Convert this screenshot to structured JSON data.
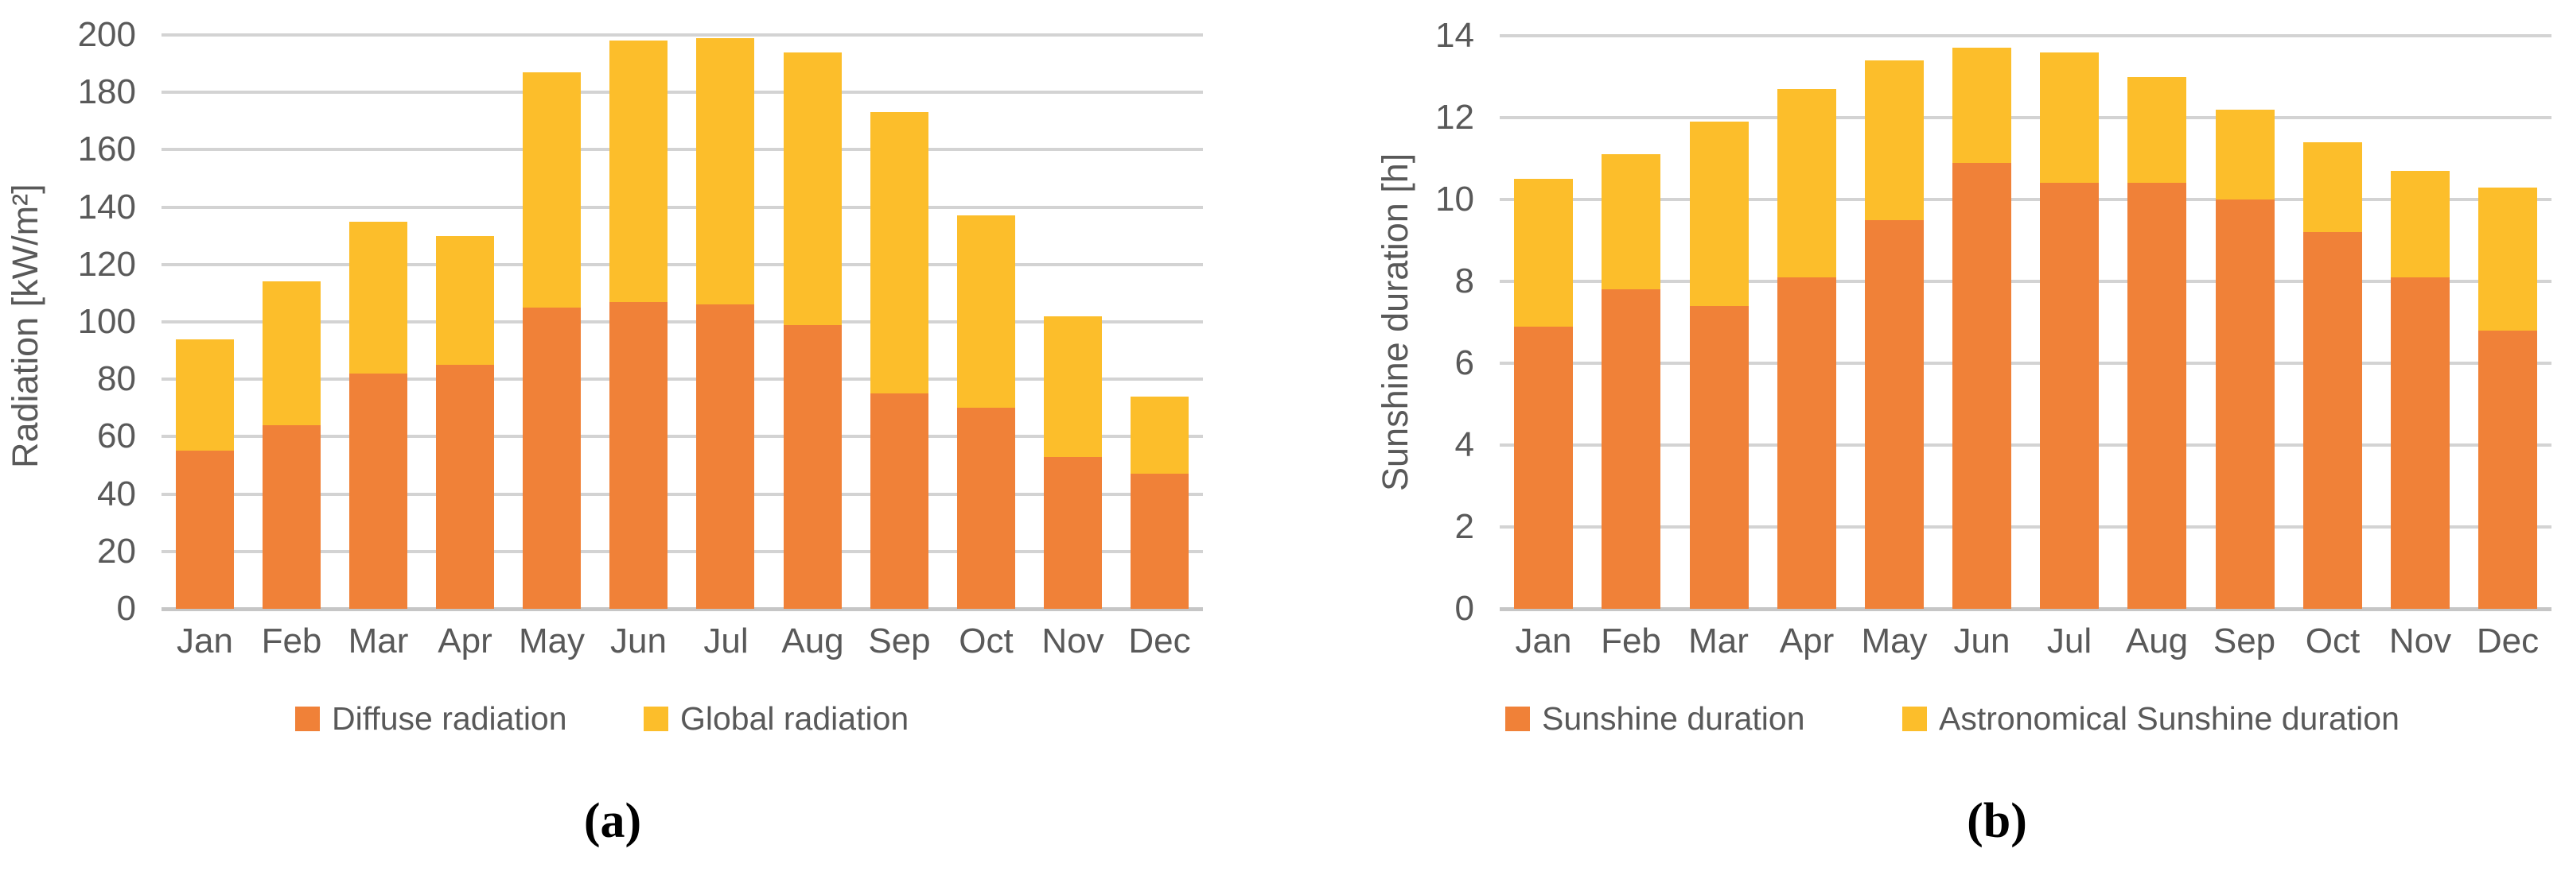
{
  "figure": {
    "background": "#ffffff",
    "text_color": "#595959",
    "gridline_color": "#d3d3d3",
    "axis_color": "#c6c6c6"
  },
  "chart_data": [
    {
      "type": "bar",
      "stacked": true,
      "caption": "(a)",
      "ylabel": "Radiation [kW/m²]",
      "xlabel": "",
      "categories": [
        "Jan",
        "Feb",
        "Mar",
        "Apr",
        "May",
        "Jun",
        "Jul",
        "Aug",
        "Sep",
        "Oct",
        "Nov",
        "Dec"
      ],
      "series": [
        {
          "name": "Diffuse radiation",
          "color": "#F08138",
          "values": [
            55,
            64,
            82,
            85,
            105,
            107,
            106,
            99,
            75,
            70,
            53,
            47
          ]
        },
        {
          "name": "Global radiation",
          "color": "#FCBE2B",
          "values": [
            39,
            50,
            53,
            45,
            82,
            91,
            93,
            95,
            98,
            67,
            49,
            27
          ]
        }
      ],
      "stack_totals": [
        94,
        114,
        135,
        130,
        187,
        198,
        199,
        194,
        173,
        137,
        102,
        74
      ],
      "ylim": [
        0,
        200
      ],
      "ytick_step": 20,
      "grid": true,
      "legend_position": "bottom"
    },
    {
      "type": "bar",
      "stacked": true,
      "caption": "(b)",
      "ylabel": "Sunshine duration [h]",
      "xlabel": "",
      "categories": [
        "Jan",
        "Feb",
        "Mar",
        "Apr",
        "May",
        "Jun",
        "Jul",
        "Aug",
        "Sep",
        "Oct",
        "Nov",
        "Dec"
      ],
      "series": [
        {
          "name": "Sunshine duration",
          "color": "#F08138",
          "values": [
            6.9,
            7.8,
            7.4,
            8.1,
            9.5,
            10.9,
            10.4,
            10.4,
            10.0,
            9.2,
            8.1,
            6.8
          ]
        },
        {
          "name": "Astronomical Sunshine duration",
          "color": "#FCBE2B",
          "values": [
            3.6,
            3.3,
            4.5,
            4.6,
            3.9,
            2.8,
            3.2,
            2.6,
            2.2,
            2.2,
            2.6,
            3.5
          ]
        }
      ],
      "stack_totals": [
        10.5,
        11.1,
        11.9,
        12.7,
        13.4,
        13.7,
        13.6,
        13.0,
        12.2,
        11.4,
        10.7,
        10.3
      ],
      "ylim": [
        0,
        14
      ],
      "ytick_step": 2,
      "grid": true,
      "legend_position": "bottom"
    }
  ]
}
